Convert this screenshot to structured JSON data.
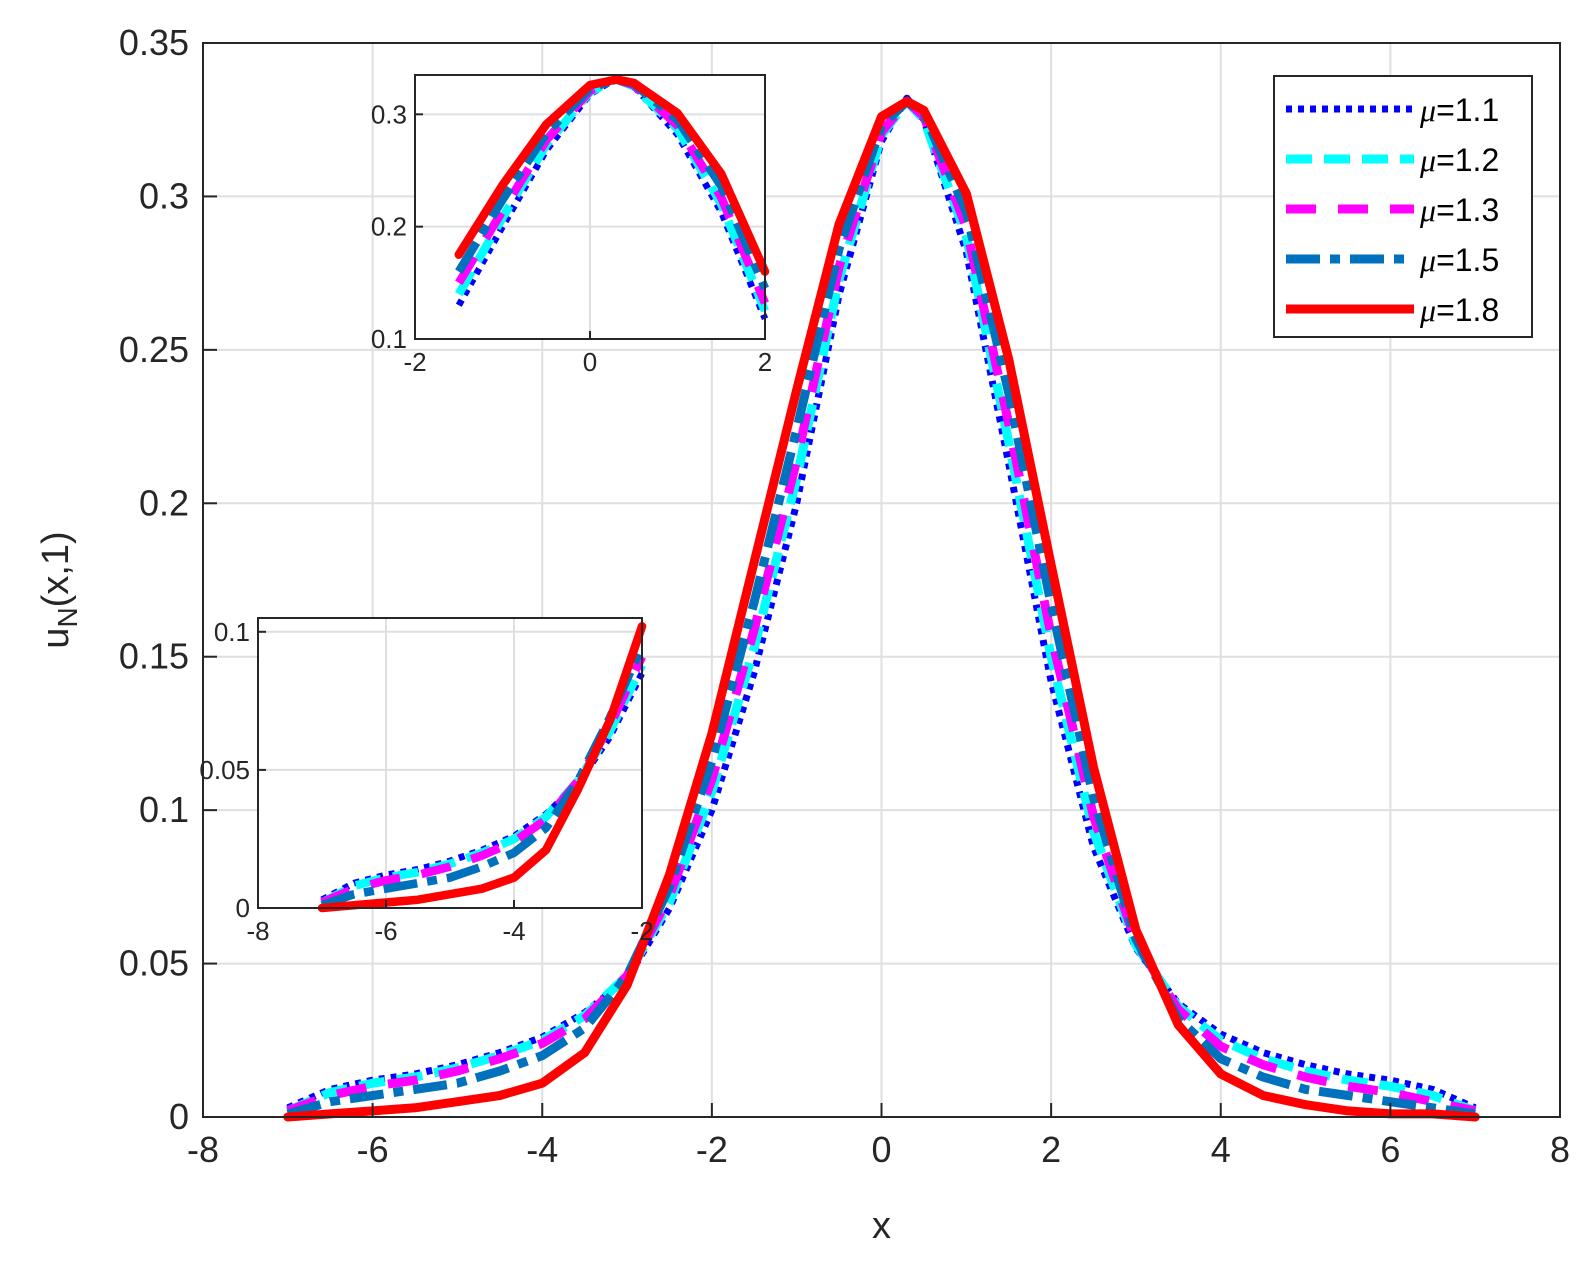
{
  "chart_data": [
    {
      "type": "line",
      "role": "main",
      "xlabel": "x",
      "ylabel_base": "u",
      "ylabel_sub": "N",
      "ylabel_rest": "(x,1)",
      "xlim": [
        -8,
        8
      ],
      "ylim": [
        0,
        0.35
      ],
      "xticks": [
        -8,
        -6,
        -4,
        -2,
        0,
        2,
        4,
        6,
        8
      ],
      "yticks": [
        0,
        0.05,
        0.1,
        0.15,
        0.2,
        0.25,
        0.3,
        0.35
      ],
      "xtick_labels": [
        "-8",
        "-6",
        "-4",
        "-2",
        "0",
        "2",
        "4",
        "6",
        "8"
      ],
      "ytick_labels": [
        "0",
        "0.05",
        "0.1",
        "0.15",
        "0.2",
        "0.25",
        "0.3",
        "0.35"
      ],
      "grid": true,
      "legend_position": "top-right",
      "x": [
        -7,
        -6.5,
        -6,
        -5.5,
        -5,
        -4.5,
        -4,
        -3.5,
        -3,
        -2.5,
        -2,
        -1.5,
        -1,
        -0.5,
        0,
        0.3,
        0.5,
        1,
        1.5,
        2,
        2.5,
        3,
        3.5,
        4,
        4.5,
        5,
        5.5,
        6,
        6.5,
        7
      ],
      "series": [
        {
          "name": "μ=1.1",
          "legend_symbol": "μ",
          "legend_value": "=1.1",
          "color": "#0000ff",
          "style": "dotted",
          "values": [
            0.003,
            0.009,
            0.012,
            0.014,
            0.017,
            0.021,
            0.026,
            0.034,
            0.045,
            0.068,
            0.1,
            0.145,
            0.2,
            0.268,
            0.318,
            0.332,
            0.325,
            0.282,
            0.213,
            0.142,
            0.088,
            0.055,
            0.037,
            0.027,
            0.021,
            0.017,
            0.014,
            0.012,
            0.009,
            0.003
          ]
        },
        {
          "name": "μ=1.2",
          "legend_symbol": "μ",
          "legend_value": "=1.2",
          "color": "#00ffff",
          "style": "dash",
          "values": [
            0.002,
            0.008,
            0.011,
            0.013,
            0.016,
            0.02,
            0.025,
            0.033,
            0.046,
            0.07,
            0.106,
            0.153,
            0.208,
            0.273,
            0.32,
            0.331,
            0.325,
            0.287,
            0.22,
            0.15,
            0.093,
            0.056,
            0.036,
            0.025,
            0.019,
            0.015,
            0.012,
            0.01,
            0.007,
            0.002
          ]
        },
        {
          "name": "μ=1.3",
          "legend_symbol": "μ",
          "legend_value": "=1.3",
          "color": "#ff00ff",
          "style": "longdash",
          "values": [
            0.002,
            0.007,
            0.01,
            0.012,
            0.015,
            0.019,
            0.024,
            0.032,
            0.046,
            0.072,
            0.11,
            0.159,
            0.214,
            0.277,
            0.321,
            0.331,
            0.326,
            0.29,
            0.226,
            0.157,
            0.098,
            0.057,
            0.035,
            0.023,
            0.017,
            0.013,
            0.01,
            0.008,
            0.005,
            0.002
          ]
        },
        {
          "name": "μ=1.5",
          "legend_symbol": "μ",
          "legend_value": "=1.5",
          "color": "#0072bd",
          "style": "dashdot",
          "values": [
            0.001,
            0.005,
            0.007,
            0.009,
            0.011,
            0.015,
            0.02,
            0.029,
            0.046,
            0.075,
            0.116,
            0.168,
            0.224,
            0.283,
            0.323,
            0.331,
            0.327,
            0.295,
            0.236,
            0.167,
            0.104,
            0.058,
            0.032,
            0.019,
            0.013,
            0.009,
            0.007,
            0.005,
            0.003,
            0.001
          ]
        },
        {
          "name": "μ=1.8",
          "legend_symbol": "μ",
          "legend_value": "=1.8",
          "color": "#ff0000",
          "style": "solid",
          "values": [
            0.0,
            0.001,
            0.002,
            0.003,
            0.005,
            0.007,
            0.011,
            0.021,
            0.043,
            0.079,
            0.125,
            0.181,
            0.237,
            0.291,
            0.326,
            0.331,
            0.328,
            0.301,
            0.247,
            0.18,
            0.114,
            0.061,
            0.03,
            0.014,
            0.007,
            0.004,
            0.002,
            0.001,
            0.001,
            0.0
          ]
        }
      ]
    },
    {
      "type": "line",
      "role": "inset-peak",
      "xlim": [
        -2,
        2
      ],
      "ylim": [
        0.1,
        0.335
      ],
      "xticks": [
        -2,
        0,
        2
      ],
      "yticks": [
        0.1,
        0.2,
        0.3
      ],
      "xtick_labels": [
        "-2",
        "0",
        "2"
      ],
      "ytick_labels": [
        "0.1",
        "0.2",
        "0.3"
      ],
      "x": [
        -1.5,
        -1,
        -0.5,
        0,
        0.3,
        0.5,
        1,
        1.5,
        2
      ],
      "series": [
        {
          "color": "#0000ff",
          "style": "dotted",
          "values": [
            0.13,
            0.2,
            0.268,
            0.318,
            0.332,
            0.325,
            0.282,
            0.213,
            0.118
          ]
        },
        {
          "color": "#00ffff",
          "style": "dash",
          "values": [
            0.14,
            0.208,
            0.273,
            0.32,
            0.331,
            0.325,
            0.287,
            0.22,
            0.125
          ]
        },
        {
          "color": "#ff00ff",
          "style": "longdash",
          "values": [
            0.15,
            0.214,
            0.277,
            0.321,
            0.331,
            0.326,
            0.29,
            0.226,
            0.132
          ]
        },
        {
          "color": "#0072bd",
          "style": "dashdot",
          "values": [
            0.16,
            0.224,
            0.283,
            0.323,
            0.331,
            0.327,
            0.295,
            0.236,
            0.145
          ]
        },
        {
          "color": "#ff0000",
          "style": "solid",
          "values": [
            0.175,
            0.237,
            0.291,
            0.326,
            0.331,
            0.328,
            0.301,
            0.247,
            0.16
          ]
        }
      ]
    },
    {
      "type": "line",
      "role": "inset-tail",
      "xlim": [
        -8,
        -2
      ],
      "ylim": [
        0,
        0.105
      ],
      "xticks": [
        -8,
        -6,
        -4,
        -2
      ],
      "yticks": [
        0,
        0.05,
        0.1
      ],
      "xtick_labels": [
        "-8",
        "-6",
        "-4",
        "-2"
      ],
      "ytick_labels": [
        "0",
        "0.05",
        "0.1"
      ],
      "x": [
        -7,
        -6.5,
        -6,
        -5.5,
        -5,
        -4.5,
        -4,
        -3.5,
        -3,
        -2.5,
        -2
      ],
      "series": [
        {
          "color": "#0000ff",
          "style": "dotted",
          "values": [
            0.003,
            0.009,
            0.012,
            0.014,
            0.017,
            0.021,
            0.026,
            0.034,
            0.045,
            0.062,
            0.085
          ]
        },
        {
          "color": "#00ffff",
          "style": "dash",
          "values": [
            0.002,
            0.008,
            0.011,
            0.013,
            0.016,
            0.02,
            0.025,
            0.033,
            0.046,
            0.064,
            0.088
          ]
        },
        {
          "color": "#ff00ff",
          "style": "longdash",
          "values": [
            0.002,
            0.007,
            0.01,
            0.012,
            0.015,
            0.019,
            0.024,
            0.032,
            0.046,
            0.066,
            0.091
          ]
        },
        {
          "color": "#0072bd",
          "style": "dashdot",
          "values": [
            0.001,
            0.005,
            0.007,
            0.009,
            0.011,
            0.015,
            0.02,
            0.029,
            0.046,
            0.069,
            0.095
          ]
        },
        {
          "color": "#ff0000",
          "style": "solid",
          "values": [
            0.0,
            0.001,
            0.002,
            0.003,
            0.005,
            0.007,
            0.011,
            0.021,
            0.043,
            0.068,
            0.102
          ]
        }
      ]
    }
  ]
}
